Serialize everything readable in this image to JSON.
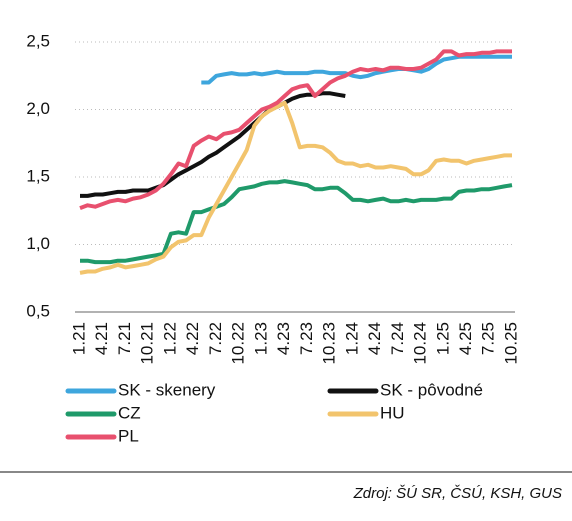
{
  "chart_data": {
    "type": "line",
    "categories": [
      "1.21",
      null,
      null,
      "4.21",
      null,
      null,
      "7.21",
      null,
      null,
      "10.21",
      null,
      null,
      "1.22",
      null,
      null,
      "4.22",
      null,
      null,
      "7.22",
      null,
      null,
      "10.22",
      null,
      null,
      "1.23",
      null,
      null,
      "4.23",
      null,
      null,
      "7.23",
      null,
      null,
      "10.23",
      null,
      null,
      "1.24",
      null,
      null,
      "4.24",
      null,
      null,
      "7.24",
      null,
      null,
      "10.24",
      null,
      null,
      "1.25",
      null,
      null,
      "4.25",
      null,
      null,
      "7.25",
      null,
      null,
      "10.25"
    ],
    "series": [
      {
        "name": "SK - skenery",
        "color": "#3ea6dd",
        "values": [
          null,
          null,
          null,
          null,
          null,
          null,
          null,
          null,
          null,
          null,
          null,
          null,
          null,
          null,
          null,
          null,
          2.2,
          2.2,
          2.25,
          2.26,
          2.27,
          2.26,
          2.26,
          2.27,
          2.26,
          2.27,
          2.28,
          2.27,
          2.27,
          2.27,
          2.27,
          2.28,
          2.28,
          2.27,
          2.27,
          2.27,
          2.25,
          2.24,
          2.25,
          2.27,
          2.28,
          2.29,
          2.3,
          2.3,
          2.29,
          2.28,
          2.3,
          2.34,
          2.37,
          2.38,
          2.39,
          2.39,
          2.39,
          2.39,
          2.39,
          2.39,
          2.39,
          2.39
        ]
      },
      {
        "name": "SK - pôvodné",
        "color": "#111111",
        "values": [
          1.36,
          1.36,
          1.37,
          1.37,
          1.38,
          1.39,
          1.39,
          1.4,
          1.4,
          1.4,
          1.42,
          1.44,
          1.48,
          1.52,
          1.55,
          1.58,
          1.61,
          1.65,
          1.68,
          1.72,
          1.76,
          1.8,
          1.85,
          1.9,
          1.95,
          2.0,
          2.02,
          2.05,
          2.08,
          2.1,
          2.11,
          2.11,
          2.12,
          2.12,
          2.11,
          2.1,
          null,
          null,
          null,
          null,
          null,
          null,
          null,
          null,
          null,
          null,
          null,
          null,
          null,
          null,
          null,
          null,
          null,
          null,
          null,
          null,
          null,
          null
        ]
      },
      {
        "name": "CZ",
        "color": "#1f9a6a",
        "values": [
          0.88,
          0.88,
          0.87,
          0.87,
          0.87,
          0.88,
          0.88,
          0.89,
          0.9,
          0.91,
          0.92,
          0.93,
          1.08,
          1.09,
          1.08,
          1.24,
          1.24,
          1.26,
          1.28,
          1.3,
          1.35,
          1.41,
          1.42,
          1.43,
          1.45,
          1.46,
          1.46,
          1.47,
          1.46,
          1.45,
          1.44,
          1.41,
          1.41,
          1.42,
          1.42,
          1.38,
          1.33,
          1.33,
          1.32,
          1.33,
          1.34,
          1.32,
          1.32,
          1.33,
          1.32,
          1.33,
          1.33,
          1.33,
          1.34,
          1.34,
          1.39,
          1.4,
          1.4,
          1.41,
          1.41,
          1.42,
          1.43,
          1.44
        ]
      },
      {
        "name": "HU",
        "color": "#f2c46d",
        "values": [
          0.79,
          0.8,
          0.8,
          0.82,
          0.83,
          0.85,
          0.83,
          0.84,
          0.85,
          0.86,
          0.89,
          0.91,
          0.98,
          1.02,
          1.03,
          1.07,
          1.07,
          1.2,
          1.3,
          1.4,
          1.5,
          1.6,
          1.7,
          1.88,
          1.95,
          1.99,
          2.02,
          2.05,
          1.9,
          1.72,
          1.73,
          1.73,
          1.72,
          1.68,
          1.62,
          1.6,
          1.6,
          1.58,
          1.59,
          1.57,
          1.57,
          1.58,
          1.57,
          1.56,
          1.52,
          1.52,
          1.55,
          1.62,
          1.63,
          1.62,
          1.62,
          1.6,
          1.62,
          1.63,
          1.64,
          1.65,
          1.66,
          1.66
        ]
      },
      {
        "name": "PL",
        "color": "#e8506e",
        "values": [
          1.27,
          1.29,
          1.28,
          1.3,
          1.32,
          1.33,
          1.32,
          1.34,
          1.35,
          1.37,
          1.4,
          1.45,
          1.52,
          1.6,
          1.58,
          1.73,
          1.77,
          1.8,
          1.78,
          1.82,
          1.83,
          1.85,
          1.9,
          1.95,
          2.0,
          2.02,
          2.05,
          2.1,
          2.15,
          2.17,
          2.18,
          2.1,
          2.15,
          2.2,
          2.23,
          2.25,
          2.28,
          2.3,
          2.29,
          2.3,
          2.29,
          2.31,
          2.31,
          2.3,
          2.3,
          2.31,
          2.34,
          2.37,
          2.43,
          2.43,
          2.4,
          2.41,
          2.41,
          2.42,
          2.42,
          2.43,
          2.43,
          2.43
        ]
      }
    ],
    "ylim": [
      0.5,
      2.5
    ],
    "yticks": [
      {
        "value": 0.5,
        "label": "0,5"
      },
      {
        "value": 1.0,
        "label": "1,0"
      },
      {
        "value": 1.5,
        "label": "1,5"
      },
      {
        "value": 2.0,
        "label": "2,0"
      },
      {
        "value": 2.5,
        "label": "2,5"
      }
    ],
    "grid": true,
    "source": "Zdroj: ŠÚ SR, ČSÚ, KSH, GUS"
  }
}
